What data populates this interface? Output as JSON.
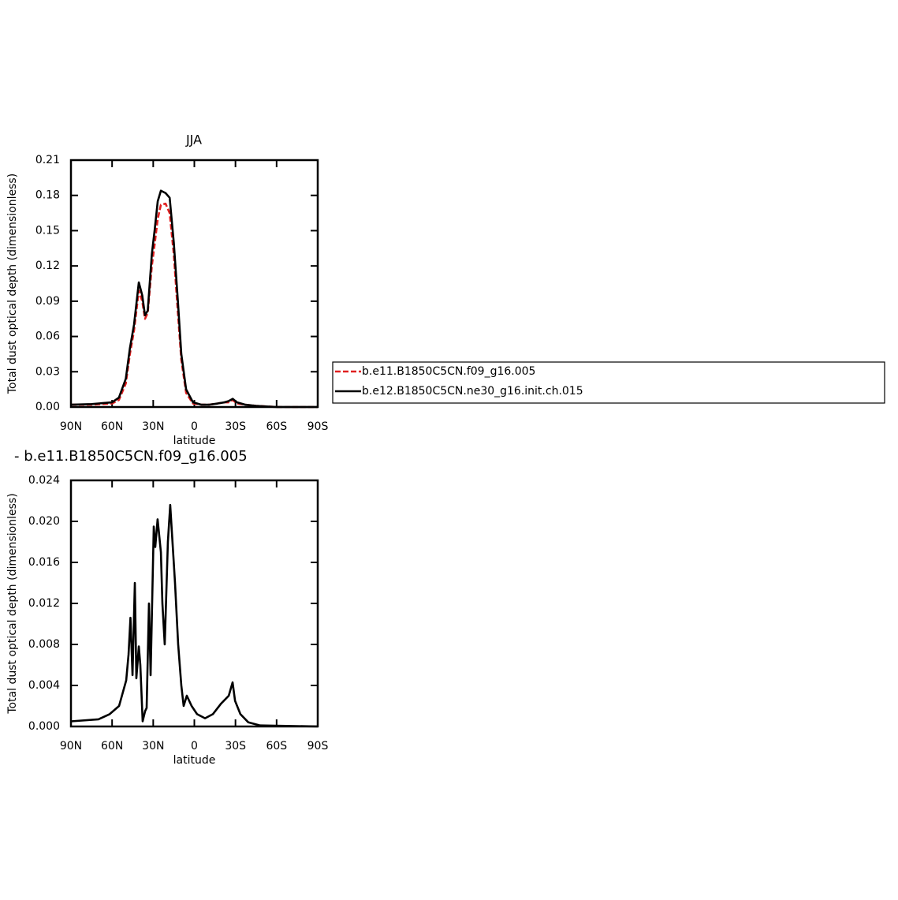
{
  "chart_data": [
    {
      "type": "line",
      "title": "JJA",
      "xlabel": "latitude",
      "ylabel": "Total dust optical depth (dimensionless)",
      "x": [
        90,
        75,
        60,
        55,
        50,
        47,
        44,
        40.5,
        38,
        36,
        34,
        31,
        29,
        26.7,
        24.4,
        21,
        18,
        15,
        12,
        9.5,
        6,
        1,
        -5,
        -11,
        -17,
        -22,
        -25,
        -28,
        -31,
        -37,
        -45,
        -60,
        -75,
        -90
      ],
      "series": [
        {
          "name": "b.e11.B1850C5CN.f09_g16.005",
          "color": "#e02020",
          "dashed": true,
          "values": [
            0.002,
            0.002,
            0.003,
            0.006,
            0.02,
            0.045,
            0.065,
            0.099,
            0.09,
            0.075,
            0.08,
            0.12,
            0.138,
            0.16,
            0.172,
            0.173,
            0.165,
            0.13,
            0.08,
            0.04,
            0.012,
            0.003,
            0.002,
            0.002,
            0.003,
            0.004,
            0.004,
            0.006,
            0.003,
            0.002,
            0.001,
            0.0,
            0.0,
            0.0
          ]
        },
        {
          "name": "b.e12.B1850C5CN.ne30_g16.init.ch.015",
          "color": "#000000",
          "dashed": false,
          "values": [
            0.002,
            0.0025,
            0.004,
            0.008,
            0.024,
            0.05,
            0.07,
            0.106,
            0.095,
            0.078,
            0.082,
            0.13,
            0.15,
            0.175,
            0.184,
            0.182,
            0.178,
            0.14,
            0.09,
            0.045,
            0.015,
            0.004,
            0.002,
            0.002,
            0.003,
            0.004,
            0.005,
            0.007,
            0.004,
            0.002,
            0.001,
            0.0,
            0.0,
            0.0
          ]
        }
      ],
      "xlim": [
        90,
        -90
      ],
      "xticks": [
        {
          "value": 90,
          "label": "90N"
        },
        {
          "value": 60,
          "label": "60N"
        },
        {
          "value": 30,
          "label": "30N"
        },
        0,
        {
          "value": -30,
          "label": "30S"
        },
        {
          "value": -60,
          "label": "60S"
        },
        {
          "value": -90,
          "label": "90S"
        }
      ],
      "ylim": [
        0,
        0.21
      ],
      "yticks": [
        {
          "value": 0,
          "label": "0.00"
        },
        0.03,
        0.06,
        0.09,
        0.12,
        0.15,
        0.18,
        0.21
      ],
      "legend": "right"
    },
    {
      "type": "line",
      "title": "- b.e11.B1850C5CN.f09_g16.005",
      "xlabel": "latitude",
      "ylabel": "Total dust optical depth (dimensionless)",
      "x": [
        90,
        69.9,
        61.8,
        54.9,
        49.7,
        48.0,
        46.6,
        45.1,
        43.4,
        42.3,
        40.5,
        39.4,
        37.7,
        35.9,
        34.8,
        33.1,
        31.9,
        29.6,
        28.5,
        26.8,
        24.4,
        23.3,
        21.6,
        19.3,
        17.6,
        16.4,
        14.1,
        11.8,
        9.5,
        7.8,
        5.5,
        2.0,
        -2.0,
        -7.8,
        -13.5,
        -19.3,
        -25.1,
        -27.9,
        -29.7,
        -33.6,
        -39.4,
        -48.0,
        -90
      ],
      "series": [
        {
          "color": "#000000",
          "dashed": false,
          "values": [
            0.0005,
            0.0007,
            0.0012,
            0.002,
            0.0045,
            0.007,
            0.0106,
            0.005,
            0.014,
            0.0047,
            0.0078,
            0.006,
            0.0005,
            0.0015,
            0.0018,
            0.012,
            0.005,
            0.0195,
            0.0175,
            0.0202,
            0.017,
            0.012,
            0.008,
            0.018,
            0.0216,
            0.019,
            0.014,
            0.008,
            0.004,
            0.002,
            0.003,
            0.002,
            0.0012,
            0.0008,
            0.0012,
            0.0022,
            0.003,
            0.0043,
            0.0025,
            0.0012,
            0.0004,
            0.0001,
            0.0
          ]
        }
      ],
      "xlim": [
        90,
        -90
      ],
      "xticks": [
        {
          "value": 90,
          "label": "90N"
        },
        {
          "value": 60,
          "label": "60N"
        },
        {
          "value": 30,
          "label": "30N"
        },
        0,
        {
          "value": -30,
          "label": "30S"
        },
        {
          "value": -60,
          "label": "60S"
        },
        {
          "value": -90,
          "label": "90S"
        }
      ],
      "ylim": [
        0,
        0.024
      ],
      "yticks": [
        {
          "value": 0,
          "label": "0.000"
        },
        0.004,
        0.008,
        0.012,
        0.016,
        {
          "value": 0.02,
          "label": "0.020"
        },
        0.024
      ]
    }
  ]
}
